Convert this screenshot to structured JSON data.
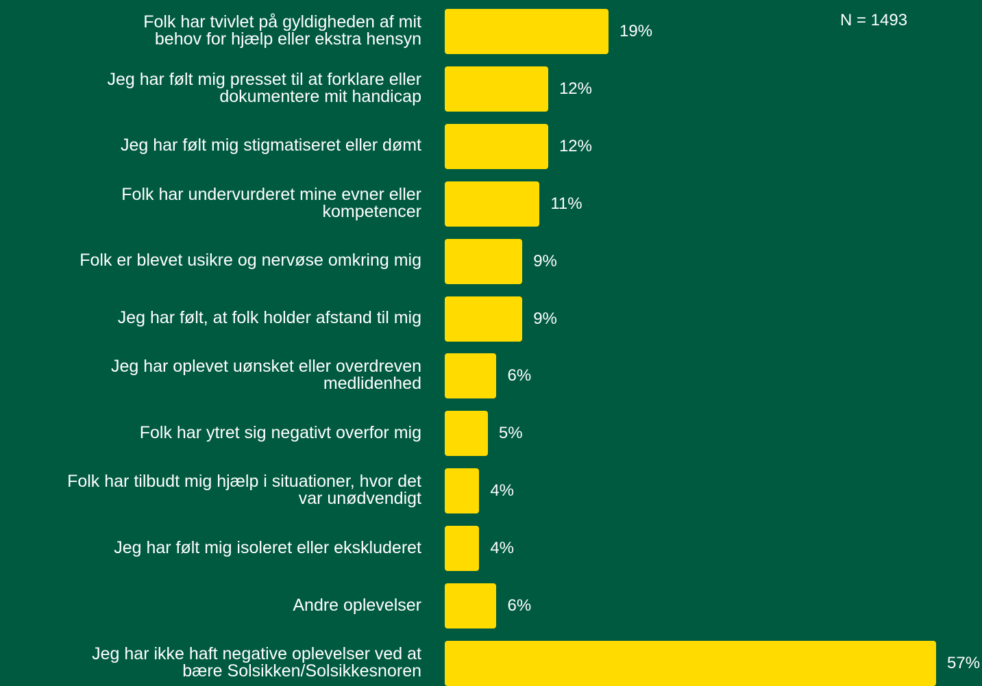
{
  "colors": {
    "background": "#005a3f",
    "bar": "#ffdb00",
    "text": "#ffffff"
  },
  "note": "N = 1493",
  "chart_data": {
    "type": "bar",
    "orientation": "horizontal",
    "categories": [
      "Folk har tvivlet på gyldigheden af mit\nbehov for hjælp eller ekstra hensyn",
      "Jeg har følt mig presset til at forklare eller\ndokumentere mit handicap",
      "Jeg har følt mig stigmatiseret eller dømt",
      "Folk har undervurderet mine evner eller\nkompetencer",
      "Folk er blevet usikre og nervøse omkring mig",
      "Jeg har følt, at folk holder afstand til mig",
      "Jeg har oplevet uønsket eller overdreven\nmedlidenhed",
      "Folk har ytret sig negativt overfor mig",
      "Folk har tilbudt mig hjælp i situationer, hvor det\nvar unødvendigt",
      "Jeg har følt mig isoleret eller ekskluderet",
      "Andre oplevelser",
      "Jeg har ikke haft negative oplevelser ved at\nbære Solsikken/Solsikkesnoren"
    ],
    "values": [
      19,
      12,
      12,
      11,
      9,
      9,
      6,
      5,
      4,
      4,
      6,
      57
    ],
    "value_labels": [
      "19%",
      "12%",
      "12%",
      "11%",
      "9%",
      "9%",
      "6%",
      "5%",
      "4%",
      "4%",
      "6%",
      "57%"
    ],
    "unit": "%",
    "xlim": [
      0,
      57
    ],
    "grid": false,
    "legend": false
  }
}
